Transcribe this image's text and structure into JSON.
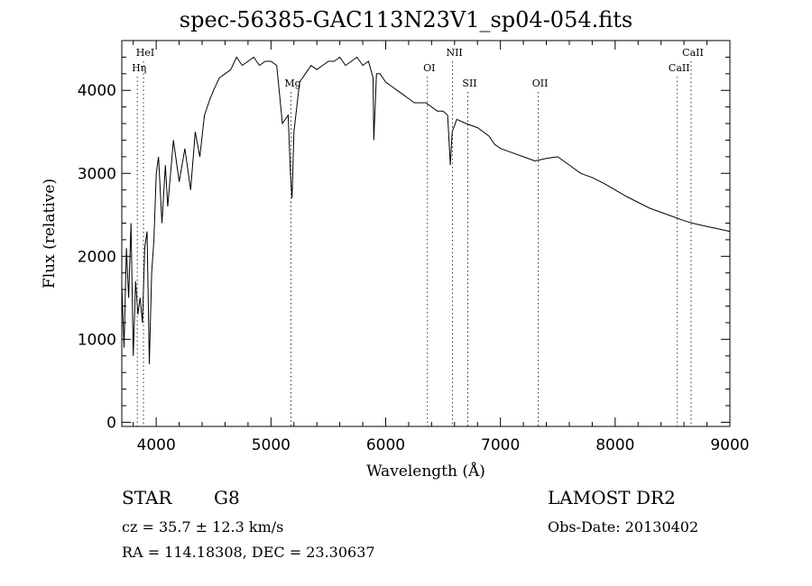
{
  "title": "spec-56385-GAC113N23V1_sp04-054.fits",
  "object_class": "STAR",
  "subclass": "G8",
  "survey": "LAMOST DR2",
  "redshift_text": "cz = 35.7 ± 12.3 km/s",
  "obs_date_text": "Obs-Date: 20130402",
  "coords_text": "RA = 114.18308, DEC =  23.30637",
  "chart_data": {
    "type": "line",
    "title": "spec-56385-GAC113N23V1_sp04-054.fits",
    "xlabel": "Wavelength (Å)",
    "ylabel": "Flux (relative)",
    "xlim": [
      3700,
      9000
    ],
    "ylim": [
      -50,
      4600
    ],
    "xticks": [
      4000,
      5000,
      6000,
      7000,
      8000,
      9000
    ],
    "yticks": [
      0,
      1000,
      2000,
      3000,
      4000
    ],
    "grid": false,
    "series": [
      {
        "x": [
          3700,
          3720,
          3740,
          3760,
          3780,
          3800,
          3820,
          3840,
          3860,
          3880,
          3900,
          3920,
          3940,
          3960,
          3980,
          4000,
          4020,
          4050,
          4080,
          4100,
          4150,
          4200,
          4250,
          4300,
          4340,
          4380,
          4420,
          4470,
          4500,
          4550,
          4600,
          4650,
          4700,
          4750,
          4800,
          4850,
          4900,
          4950,
          5000,
          5050,
          5100,
          5150,
          5170,
          5184,
          5200,
          5250,
          5300,
          5350,
          5400,
          5450,
          5500,
          5550,
          5600,
          5650,
          5700,
          5750,
          5800,
          5850,
          5890,
          5896,
          5920,
          5950,
          6000,
          6050,
          6100,
          6150,
          6200,
          6250,
          6300,
          6350,
          6400,
          6450,
          6500,
          6540,
          6563,
          6580,
          6620,
          6700,
          6800,
          6900,
          6950,
          7000,
          7100,
          7200,
          7300,
          7400,
          7500,
          7600,
          7700,
          7800,
          7900,
          8000,
          8100,
          8200,
          8300,
          8400,
          8500,
          8600,
          8700,
          8800,
          8900,
          9000
        ],
        "y": [
          1650,
          900,
          2100,
          1500,
          2400,
          800,
          1700,
          1300,
          1500,
          1200,
          2100,
          2300,
          700,
          1800,
          2200,
          3000,
          3200,
          2400,
          3100,
          2600,
          3400,
          2900,
          3300,
          2800,
          3500,
          3200,
          3700,
          3900,
          4000,
          4150,
          4200,
          4250,
          4400,
          4300,
          4350,
          4400,
          4300,
          4350,
          4350,
          4300,
          3600,
          3700,
          3000,
          2700,
          3500,
          4100,
          4200,
          4300,
          4250,
          4300,
          4350,
          4350,
          4400,
          4300,
          4350,
          4400,
          4300,
          4350,
          4150,
          3400,
          4200,
          4200,
          4100,
          4050,
          4000,
          3950,
          3900,
          3850,
          3850,
          3850,
          3800,
          3750,
          3750,
          3700,
          3100,
          3500,
          3650,
          3600,
          3550,
          3450,
          3350,
          3300,
          3250,
          3200,
          3150,
          3180,
          3200,
          3100,
          3000,
          2950,
          2880,
          2800,
          2720,
          2650,
          2580,
          2530,
          2480,
          2430,
          2390,
          2360,
          2330,
          2300
        ]
      }
    ],
    "line_markers": [
      {
        "label": "HeI",
        "x": 3889,
        "label_pos": "top"
      },
      {
        "label": "Hη",
        "x": 3835,
        "label_pos": "second"
      },
      {
        "label": "Mg",
        "x": 5175,
        "label_pos": "mid"
      },
      {
        "label": "OI",
        "x": 6364,
        "label_pos": "second"
      },
      {
        "label": "NII",
        "x": 6583,
        "label_pos": "top"
      },
      {
        "label": "SII",
        "x": 6716,
        "label_pos": "third"
      },
      {
        "label": "OII",
        "x": 7330,
        "label_pos": "third"
      },
      {
        "label": "CaII",
        "x": 8542,
        "label_pos": "second"
      },
      {
        "label": "CaII",
        "x": 8662,
        "label_pos": "top"
      }
    ]
  }
}
